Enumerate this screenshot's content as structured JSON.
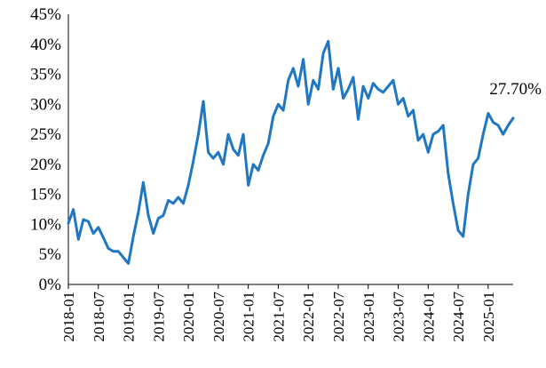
{
  "chart_data": {
    "type": "line",
    "title": "",
    "xlabel": "",
    "ylabel": "",
    "ylim": [
      0,
      45
    ],
    "y_unit": "%",
    "yticks": [
      "0%",
      "5%",
      "10%",
      "15%",
      "20%",
      "25%",
      "30%",
      "35%",
      "40%",
      "45%"
    ],
    "xticks": [
      "2018-01",
      "2018-07",
      "2019-01",
      "2019-07",
      "2020-01",
      "2020-07",
      "2021-01",
      "2021-07",
      "2022-01",
      "2022-07",
      "2023-01",
      "2023-07",
      "2024-01",
      "2024-07",
      "2025-01"
    ],
    "grid": false,
    "legend": "none",
    "annotation": "27.70%",
    "series": [
      {
        "color": "#1f77c4",
        "x": [
          "2018-01",
          "2018-02",
          "2018-03",
          "2018-04",
          "2018-05",
          "2018-06",
          "2018-07",
          "2018-08",
          "2018-09",
          "2018-10",
          "2018-11",
          "2018-12",
          "2019-01",
          "2019-02",
          "2019-03",
          "2019-04",
          "2019-05",
          "2019-06",
          "2019-07",
          "2019-08",
          "2019-09",
          "2019-10",
          "2019-11",
          "2019-12",
          "2020-01",
          "2020-02",
          "2020-03",
          "2020-04",
          "2020-05",
          "2020-06",
          "2020-07",
          "2020-08",
          "2020-09",
          "2020-10",
          "2020-11",
          "2020-12",
          "2021-01",
          "2021-02",
          "2021-03",
          "2021-04",
          "2021-05",
          "2021-06",
          "2021-07",
          "2021-08",
          "2021-09",
          "2021-10",
          "2021-11",
          "2021-12",
          "2022-01",
          "2022-02",
          "2022-03",
          "2022-04",
          "2022-05",
          "2022-06",
          "2022-07",
          "2022-08",
          "2022-09",
          "2022-10",
          "2022-11",
          "2022-12",
          "2023-01",
          "2023-02",
          "2023-03",
          "2023-04",
          "2023-05",
          "2023-06",
          "2023-07",
          "2023-08",
          "2023-09",
          "2023-10",
          "2023-11",
          "2023-12",
          "2024-01",
          "2024-02",
          "2024-03",
          "2024-04",
          "2024-05",
          "2024-06",
          "2024-07",
          "2024-08",
          "2024-09",
          "2024-10",
          "2024-11",
          "2024-12",
          "2025-01",
          "2025-02",
          "2025-03",
          "2025-04",
          "2025-05",
          "2025-06"
        ],
        "y": [
          10.2,
          12.5,
          7.5,
          10.8,
          10.5,
          8.5,
          9.5,
          7.8,
          6.0,
          5.5,
          5.5,
          4.5,
          3.5,
          8.0,
          12.0,
          17.0,
          11.5,
          8.5,
          11.0,
          11.5,
          14.0,
          13.5,
          14.5,
          13.5,
          16.5,
          20.5,
          25.0,
          30.5,
          22.0,
          21.0,
          22.0,
          20.0,
          25.0,
          22.5,
          21.5,
          25.0,
          16.5,
          20.0,
          19.0,
          21.5,
          23.5,
          28.0,
          30.0,
          29.0,
          34.0,
          36.0,
          33.0,
          37.5,
          30.0,
          34.0,
          32.5,
          38.5,
          40.5,
          32.5,
          36.0,
          31.0,
          32.5,
          34.5,
          27.5,
          33.0,
          31.0,
          33.5,
          32.5,
          32.0,
          33.0,
          34.0,
          30.0,
          31.0,
          28.0,
          29.0,
          24.0,
          25.0,
          22.0,
          25.0,
          25.5,
          26.5,
          18.5,
          13.5,
          9.0,
          8.0,
          15.0,
          20.0,
          21.0,
          25.0,
          28.5,
          27.0,
          26.5,
          25.0,
          26.5,
          27.7
        ]
      }
    ]
  }
}
